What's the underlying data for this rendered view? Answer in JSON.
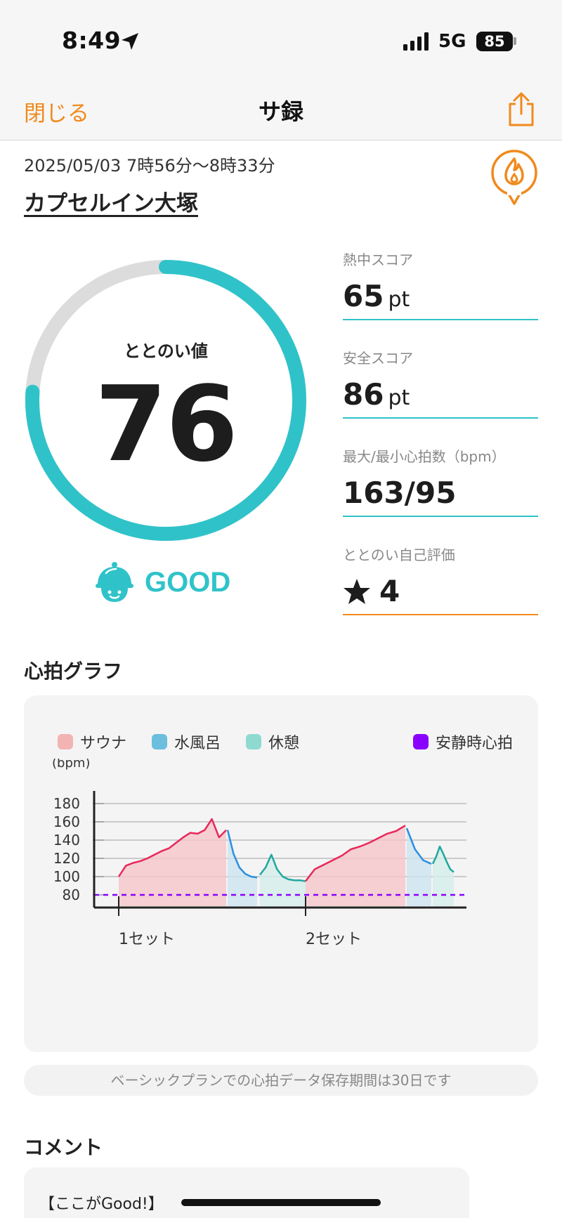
{
  "status_bar": {
    "time": "8:49",
    "network": "5G",
    "battery": "85"
  },
  "nav": {
    "close_label": "閉じる",
    "title": "サ録"
  },
  "session": {
    "datetime": "2025/05/03 7時56分〜8時33分",
    "place": "カプセルイン大塚"
  },
  "gauge": {
    "label": "ととのい値",
    "value": "76",
    "progress": 0.76,
    "mood": "GOOD"
  },
  "stats": [
    {
      "label": "熱中スコア",
      "value": "65",
      "unit": "pt"
    },
    {
      "label": "安全スコア",
      "value": "86",
      "unit": "pt"
    },
    {
      "label": "最大/最小心拍数（bpm）",
      "value": "163/95",
      "unit": ""
    },
    {
      "label": "ととのい自己評価",
      "value": "4",
      "unit": ""
    }
  ],
  "graph": {
    "title": "心拍グラフ",
    "legend": [
      {
        "label": "サウナ",
        "color": "#f2b3b3"
      },
      {
        "label": "水風呂",
        "color": "#6bbede"
      },
      {
        "label": "休憩",
        "color": "#8fdad0"
      },
      {
        "label": "安静時心拍",
        "color": "#8a00ff"
      }
    ]
  },
  "chart_data": {
    "type": "line",
    "ylabel": "(bpm)",
    "ylim": [
      80,
      180
    ],
    "yticks": [
      180,
      160,
      140,
      120,
      100,
      80
    ],
    "set_labels": [
      "1セット",
      "2セット"
    ],
    "resting_hr": 80,
    "series": [
      {
        "name": "サウナ",
        "color": "#e8285a",
        "fill": "#f5c6c9",
        "set": 1,
        "values": [
          100,
          112,
          115,
          117,
          120,
          124,
          128,
          131,
          137,
          143,
          148,
          147,
          151,
          163,
          143,
          151
        ]
      },
      {
        "name": "水風呂",
        "color": "#2a8fe0",
        "fill": "#cde3ef",
        "set": 1,
        "values": [
          151,
          125,
          110,
          103,
          100,
          99
        ]
      },
      {
        "name": "休憩",
        "color": "#20a8a0",
        "fill": "#d5eeea",
        "set": 1,
        "values": [
          102,
          110,
          124,
          108,
          100,
          97,
          96,
          96,
          95
        ]
      },
      {
        "name": "サウナ",
        "color": "#e8285a",
        "fill": "#f5c6c9",
        "set": 2,
        "values": [
          95,
          108,
          113,
          118,
          123,
          130,
          133,
          137,
          142,
          147,
          150,
          156
        ]
      },
      {
        "name": "水風呂",
        "color": "#2a8fe0",
        "fill": "#cde3ef",
        "set": 2,
        "values": [
          153,
          130,
          118,
          114
        ]
      },
      {
        "name": "休憩",
        "color": "#20a8a0",
        "fill": "#d5eeea",
        "set": 2,
        "values": [
          114,
          122,
          133,
          125,
          116,
          108,
          105
        ]
      }
    ]
  },
  "notice": "ベーシックプランでの心拍データ保存期間は30日です",
  "comment": {
    "title": "コメント",
    "text": "【ここがGood!】"
  }
}
